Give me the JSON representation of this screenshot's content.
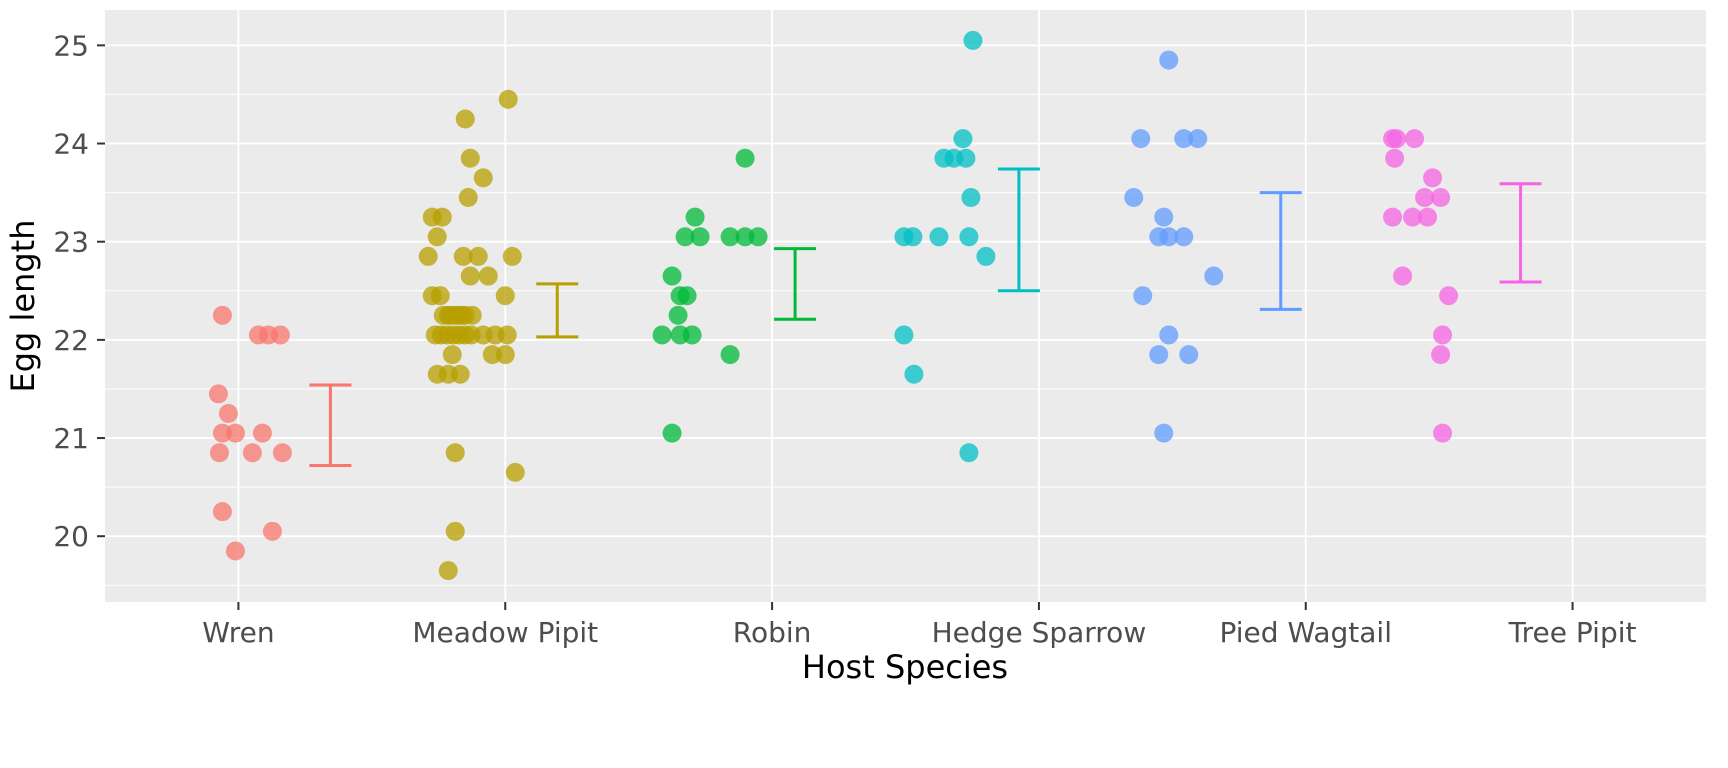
{
  "chart_data": {
    "type": "scatter",
    "subtype": "jittered strip plot with 95% CI error bars (ggplot style)",
    "title": "",
    "xlabel": "Host Species",
    "ylabel": "Egg length",
    "ylim": [
      19.33,
      25.36
    ],
    "yticks": [
      20,
      21,
      22,
      23,
      24,
      25
    ],
    "y_minor": [
      19.5,
      20.5,
      21.5,
      22.5,
      23.5,
      24.5
    ],
    "grid": "white major and minor horizontal gridlines plus vertical major gridlines at each category, on gray panel",
    "legend": "none",
    "panel_bg": "#EBEBEB",
    "gridline_color": "#FFFFFF",
    "tick_color": "#333333",
    "tick_label_color": "#4D4D4D",
    "categories": [
      "Wren",
      "Meadow Pipit",
      "Robin",
      "Hedge Sparrow",
      "Pied Wagtail",
      "Tree Pipit"
    ],
    "series": [
      {
        "name": "Wren",
        "color": "#F8766D",
        "values": [
          22.25,
          22.05,
          22.05,
          22.05,
          21.45,
          21.25,
          21.05,
          21.05,
          21.05,
          20.85,
          20.85,
          20.85,
          20.25,
          20.05,
          19.85
        ],
        "jitter_dx": [
          -16,
          20,
          30,
          42,
          -20,
          -10,
          -16,
          -3,
          24,
          -19,
          14,
          44,
          -16,
          34,
          -3
        ],
        "errorbar": {
          "low": 20.72,
          "high": 21.54,
          "dx": 92,
          "kind": "95% CI of mean"
        }
      },
      {
        "name": "Meadow Pipit",
        "color": "#B79F00",
        "values": [
          24.45,
          24.25,
          23.85,
          23.65,
          23.45,
          23.25,
          23.25,
          23.05,
          22.85,
          22.85,
          22.85,
          22.85,
          22.65,
          22.65,
          22.45,
          22.45,
          22.45,
          22.25,
          22.25,
          22.25,
          22.25,
          22.25,
          22.25,
          22.25,
          22.25,
          22.05,
          22.05,
          22.05,
          22.05,
          22.05,
          22.05,
          22.05,
          22.05,
          22.05,
          22.05,
          21.85,
          21.85,
          21.85,
          21.65,
          21.65,
          21.65,
          20.85,
          20.65,
          20.05,
          19.65
        ],
        "jitter_dx": [
          3,
          -40,
          -35,
          -22,
          -37,
          -73,
          -63,
          -68,
          -77,
          -42,
          -27,
          7,
          -35,
          -17,
          -73,
          -65,
          0,
          -62,
          -55,
          -47,
          -40,
          -33,
          -57,
          -50,
          -43,
          -70,
          -58,
          -46,
          -34,
          -22,
          -10,
          2,
          -64,
          -52,
          -40,
          -53,
          -13,
          0,
          -68,
          -57,
          -45,
          -50,
          10,
          -50,
          -57
        ],
        "errorbar": {
          "low": 22.03,
          "high": 22.57,
          "dx": 52,
          "kind": "95% CI of mean"
        }
      },
      {
        "name": "Robin",
        "color": "#00BA38",
        "values": [
          23.85,
          23.25,
          23.05,
          23.05,
          23.05,
          23.05,
          23.05,
          22.65,
          22.45,
          22.45,
          22.25,
          22.05,
          22.05,
          22.05,
          21.85,
          21.05
        ],
        "jitter_dx": [
          -27,
          -77,
          -87,
          -72,
          -42,
          -27,
          -14,
          -100,
          -92,
          -85,
          -94,
          -110,
          -92,
          -80,
          -42,
          -100
        ],
        "errorbar": {
          "low": 22.21,
          "high": 22.93,
          "dx": 23,
          "kind": "95% CI of mean"
        }
      },
      {
        "name": "Hedge Sparrow",
        "color": "#00BFC4",
        "values": [
          25.05,
          24.05,
          23.85,
          23.85,
          23.85,
          23.45,
          23.05,
          23.05,
          23.05,
          23.05,
          22.85,
          22.05,
          21.65,
          20.85
        ],
        "jitter_dx": [
          -66,
          -76,
          -95,
          -85,
          -73,
          -68,
          -135,
          -126,
          -100,
          -70,
          -53,
          -135,
          -125,
          -70
        ],
        "errorbar": {
          "low": 22.5,
          "high": 23.74,
          "dx": -20,
          "kind": "95% CI of mean"
        }
      },
      {
        "name": "Pied Wagtail",
        "color": "#619CFF",
        "values": [
          24.85,
          24.05,
          24.05,
          24.05,
          23.45,
          23.25,
          23.05,
          23.05,
          23.05,
          22.65,
          22.45,
          22.05,
          21.85,
          21.85,
          21.05
        ],
        "jitter_dx": [
          -137,
          -165,
          -122,
          -108,
          -172,
          -142,
          -147,
          -137,
          -122,
          -92,
          -163,
          -137,
          -147,
          -117,
          -142
        ],
        "errorbar": {
          "low": 22.31,
          "high": 23.5,
          "dx": -25,
          "kind": "95% CI of mean"
        }
      },
      {
        "name": "Tree Pipit",
        "color": "#F564E3",
        "values": [
          24.05,
          24.05,
          24.05,
          23.85,
          23.65,
          23.45,
          23.45,
          23.25,
          23.25,
          23.25,
          22.65,
          22.45,
          22.05,
          21.85,
          21.05
        ],
        "jitter_dx": [
          -180,
          -158,
          -176,
          -178,
          -140,
          -148,
          -132,
          -180,
          -160,
          -145,
          -170,
          -124,
          -130,
          -132,
          -130
        ],
        "errorbar": {
          "low": 22.59,
          "high": 23.59,
          "dx": -52,
          "kind": "95% CI of mean"
        }
      }
    ]
  }
}
